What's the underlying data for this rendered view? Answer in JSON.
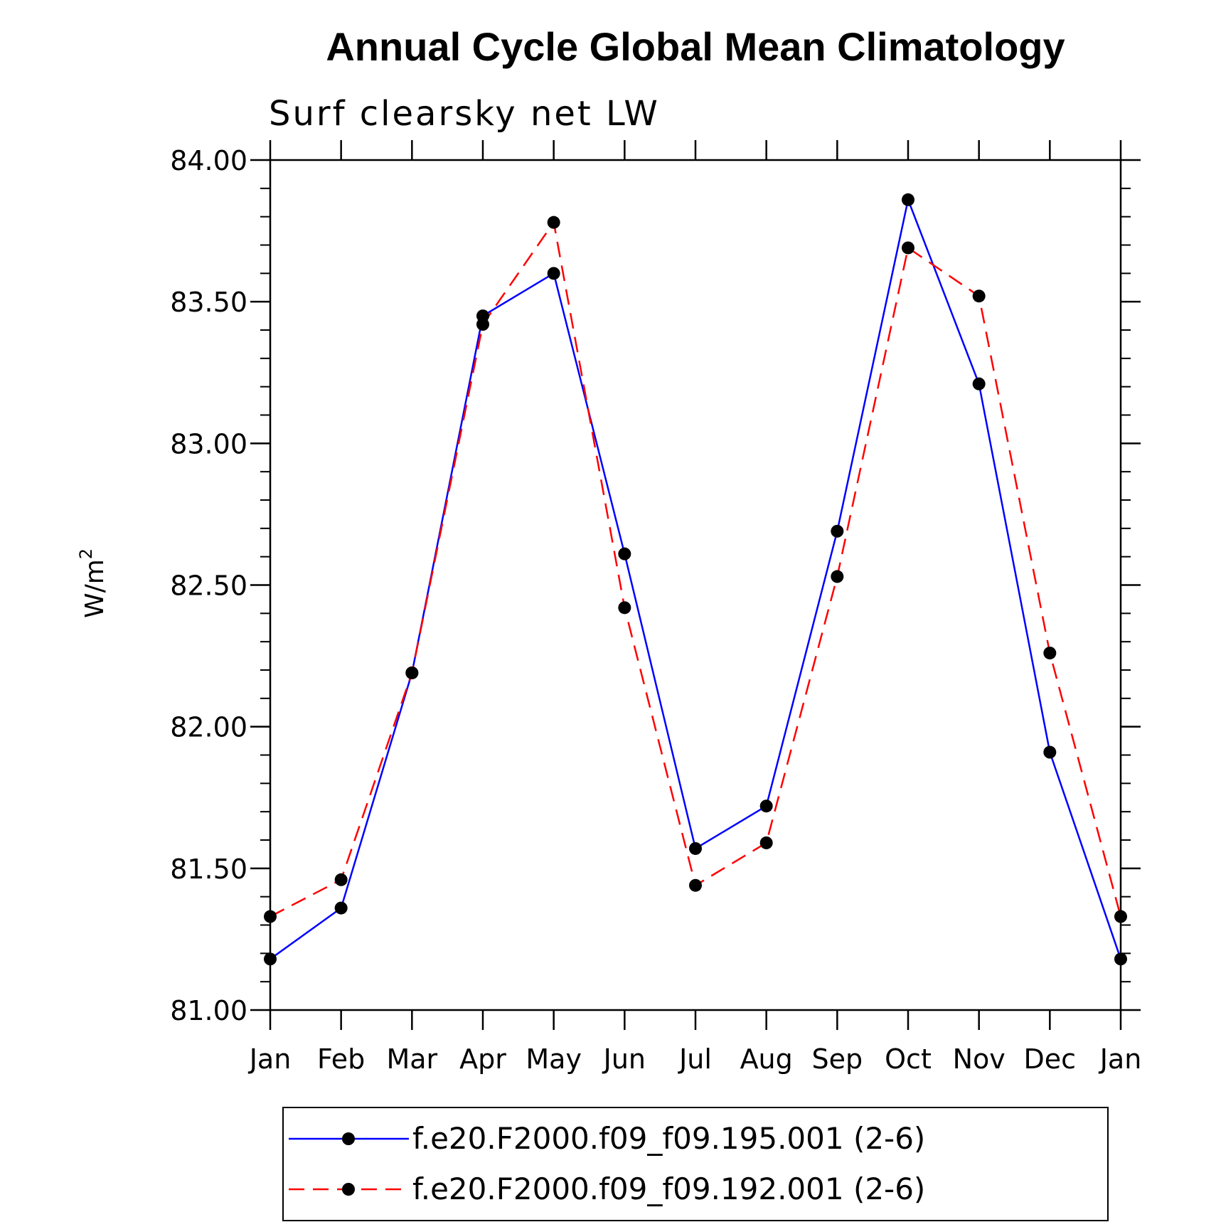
{
  "chart_data": {
    "type": "line",
    "title": "Annual Cycle Global Mean Climatology",
    "subtitle": "Surf clearsky net LW",
    "ylabel": "W/m",
    "ylabel_sup": "2",
    "categories": [
      "Jan",
      "Feb",
      "Mar",
      "Apr",
      "May",
      "Jun",
      "Jul",
      "Aug",
      "Sep",
      "Oct",
      "Nov",
      "Dec",
      "Jan"
    ],
    "ylim": [
      81.0,
      84.0
    ],
    "yticks": [
      "81.00",
      "81.50",
      "82.00",
      "82.50",
      "83.00",
      "83.50",
      "84.00"
    ],
    "series": [
      {
        "name": "f.e20.F2000.f09_f09.195.001 (2-6)",
        "color": "#0000ff",
        "dash": "solid",
        "values": [
          81.18,
          81.36,
          82.19,
          83.45,
          83.6,
          82.61,
          81.57,
          81.72,
          82.69,
          83.86,
          83.21,
          81.91,
          81.18
        ]
      },
      {
        "name": "f.e20.F2000.f09_f09.192.001 (2-6)",
        "color": "#ff0000",
        "dash": "dashed",
        "values": [
          81.33,
          81.46,
          82.19,
          83.42,
          83.78,
          82.42,
          81.44,
          81.59,
          82.53,
          83.69,
          83.52,
          82.26,
          81.33
        ]
      }
    ],
    "grid": false,
    "legend_position": "bottom"
  }
}
